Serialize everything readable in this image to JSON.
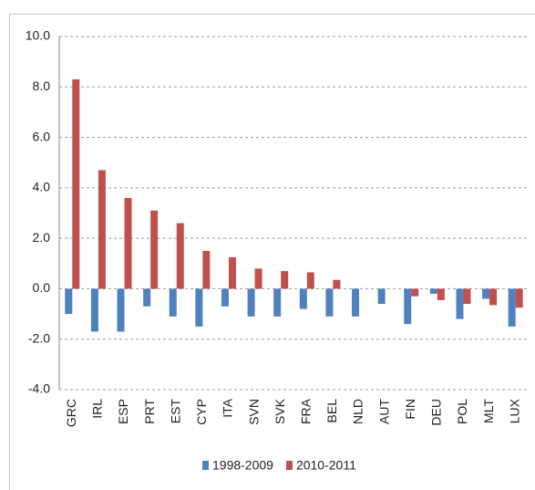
{
  "chart_data": {
    "type": "bar",
    "categories": [
      "GRC",
      "IRL",
      "ESP",
      "PRT",
      "EST",
      "CYP",
      "ITA",
      "SVN",
      "SVK",
      "FRA",
      "BEL",
      "NLD",
      "AUT",
      "FIN",
      "DEU",
      "POL",
      "MLT",
      "LUX"
    ],
    "series": [
      {
        "name": "1998-2009",
        "color": "#4f81bd",
        "values": [
          -1.0,
          -1.7,
          -1.7,
          -0.7,
          -1.1,
          -1.5,
          -0.7,
          -1.1,
          -1.1,
          -0.8,
          -1.1,
          -1.1,
          -0.6,
          -1.4,
          -0.2,
          -1.2,
          -0.4,
          -1.5
        ]
      },
      {
        "name": "2010-2011",
        "color": "#c0504d",
        "values": [
          8.3,
          4.7,
          3.6,
          3.1,
          2.6,
          1.5,
          1.25,
          0.8,
          0.7,
          0.65,
          0.35,
          0,
          0,
          -0.3,
          -0.45,
          -0.6,
          -0.65,
          -0.75
        ]
      }
    ],
    "ylim": [
      -4,
      10
    ],
    "yticks": [
      {
        "value": -4,
        "label": "-4.0"
      },
      {
        "value": -2,
        "label": "-2.0"
      },
      {
        "value": 0,
        "label": "0.0"
      },
      {
        "value": 2,
        "label": "2.0"
      },
      {
        "value": 4,
        "label": "4.0"
      },
      {
        "value": 6,
        "label": "6.0"
      },
      {
        "value": 8,
        "label": "8.0"
      },
      {
        "value": 10,
        "label": "10.0"
      }
    ],
    "grid": true,
    "legend": "bottom"
  }
}
